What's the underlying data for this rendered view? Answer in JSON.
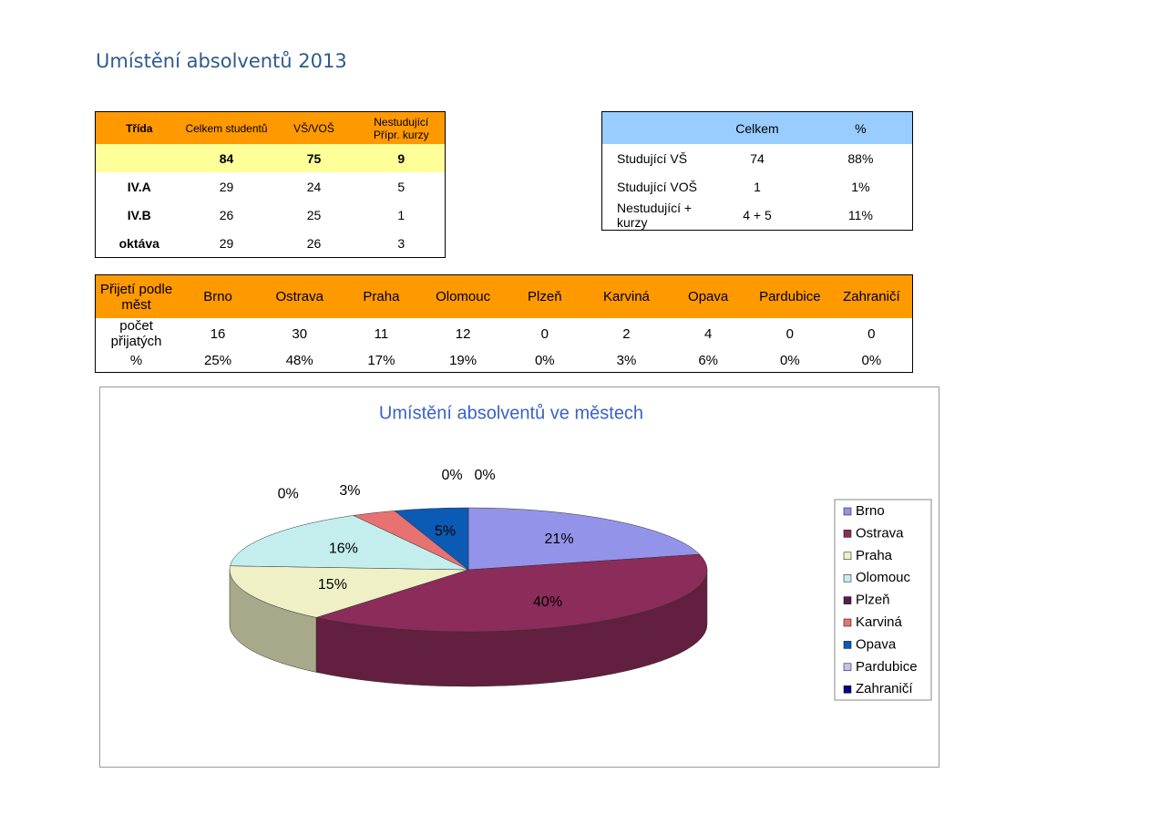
{
  "title": "Umístění absolventů 2013",
  "table1": {
    "header": [
      "Třída",
      "Celkem studentů",
      "VŠ/VOŠ",
      "Nestudující Přípr. kurzy"
    ],
    "rows": [
      [
        null,
        84,
        75,
        9
      ],
      [
        "IV.A",
        29,
        24,
        5
      ],
      [
        "IV.B",
        26,
        25,
        1
      ],
      [
        "oktáva",
        29,
        26,
        3
      ]
    ]
  },
  "table2": {
    "header": [
      null,
      "Celkem",
      "%"
    ],
    "rows": [
      [
        "Studující VŠ",
        "74",
        "88%"
      ],
      [
        "Studující VOŠ",
        "1",
        "1%"
      ],
      [
        "Nestudující + kurzy",
        "4 + 5",
        "11%"
      ]
    ]
  },
  "table3": {
    "header": [
      "Přijetí podle měst",
      "Brno",
      "Ostrava",
      "Praha",
      "Olomouc",
      "Plzeň",
      "Karviná",
      "Opava",
      "Pardubice",
      "Zahraničí"
    ],
    "rows": [
      [
        "počet přijatých",
        16,
        30,
        11,
        12,
        0,
        2,
        4,
        0,
        0
      ],
      [
        "%",
        "25%",
        "48%",
        "17%",
        "19%",
        "0%",
        "3%",
        "6%",
        "0%",
        "0%"
      ]
    ]
  },
  "chart_data": {
    "type": "pie",
    "title": "Umístění absolventů ve městech",
    "categories": [
      "Brno",
      "Ostrava",
      "Praha",
      "Olomouc",
      "Plzeň",
      "Karviná",
      "Opava",
      "Pardubice",
      "Zahraničí"
    ],
    "values": [
      21,
      40,
      15,
      16,
      0,
      3,
      5,
      0,
      0
    ],
    "value_labels": [
      "21%",
      "40%",
      "15%",
      "16%",
      "0%",
      "3%",
      "5%",
      "0%",
      "0%"
    ],
    "colors": [
      "#9393ea",
      "#8c2c5a",
      "#f0f0c6",
      "#c4eeee",
      "#5c1a4c",
      "#e87272",
      "#0b5bb5",
      "#c2c2f2",
      "#00008a"
    ],
    "legend": "right"
  }
}
